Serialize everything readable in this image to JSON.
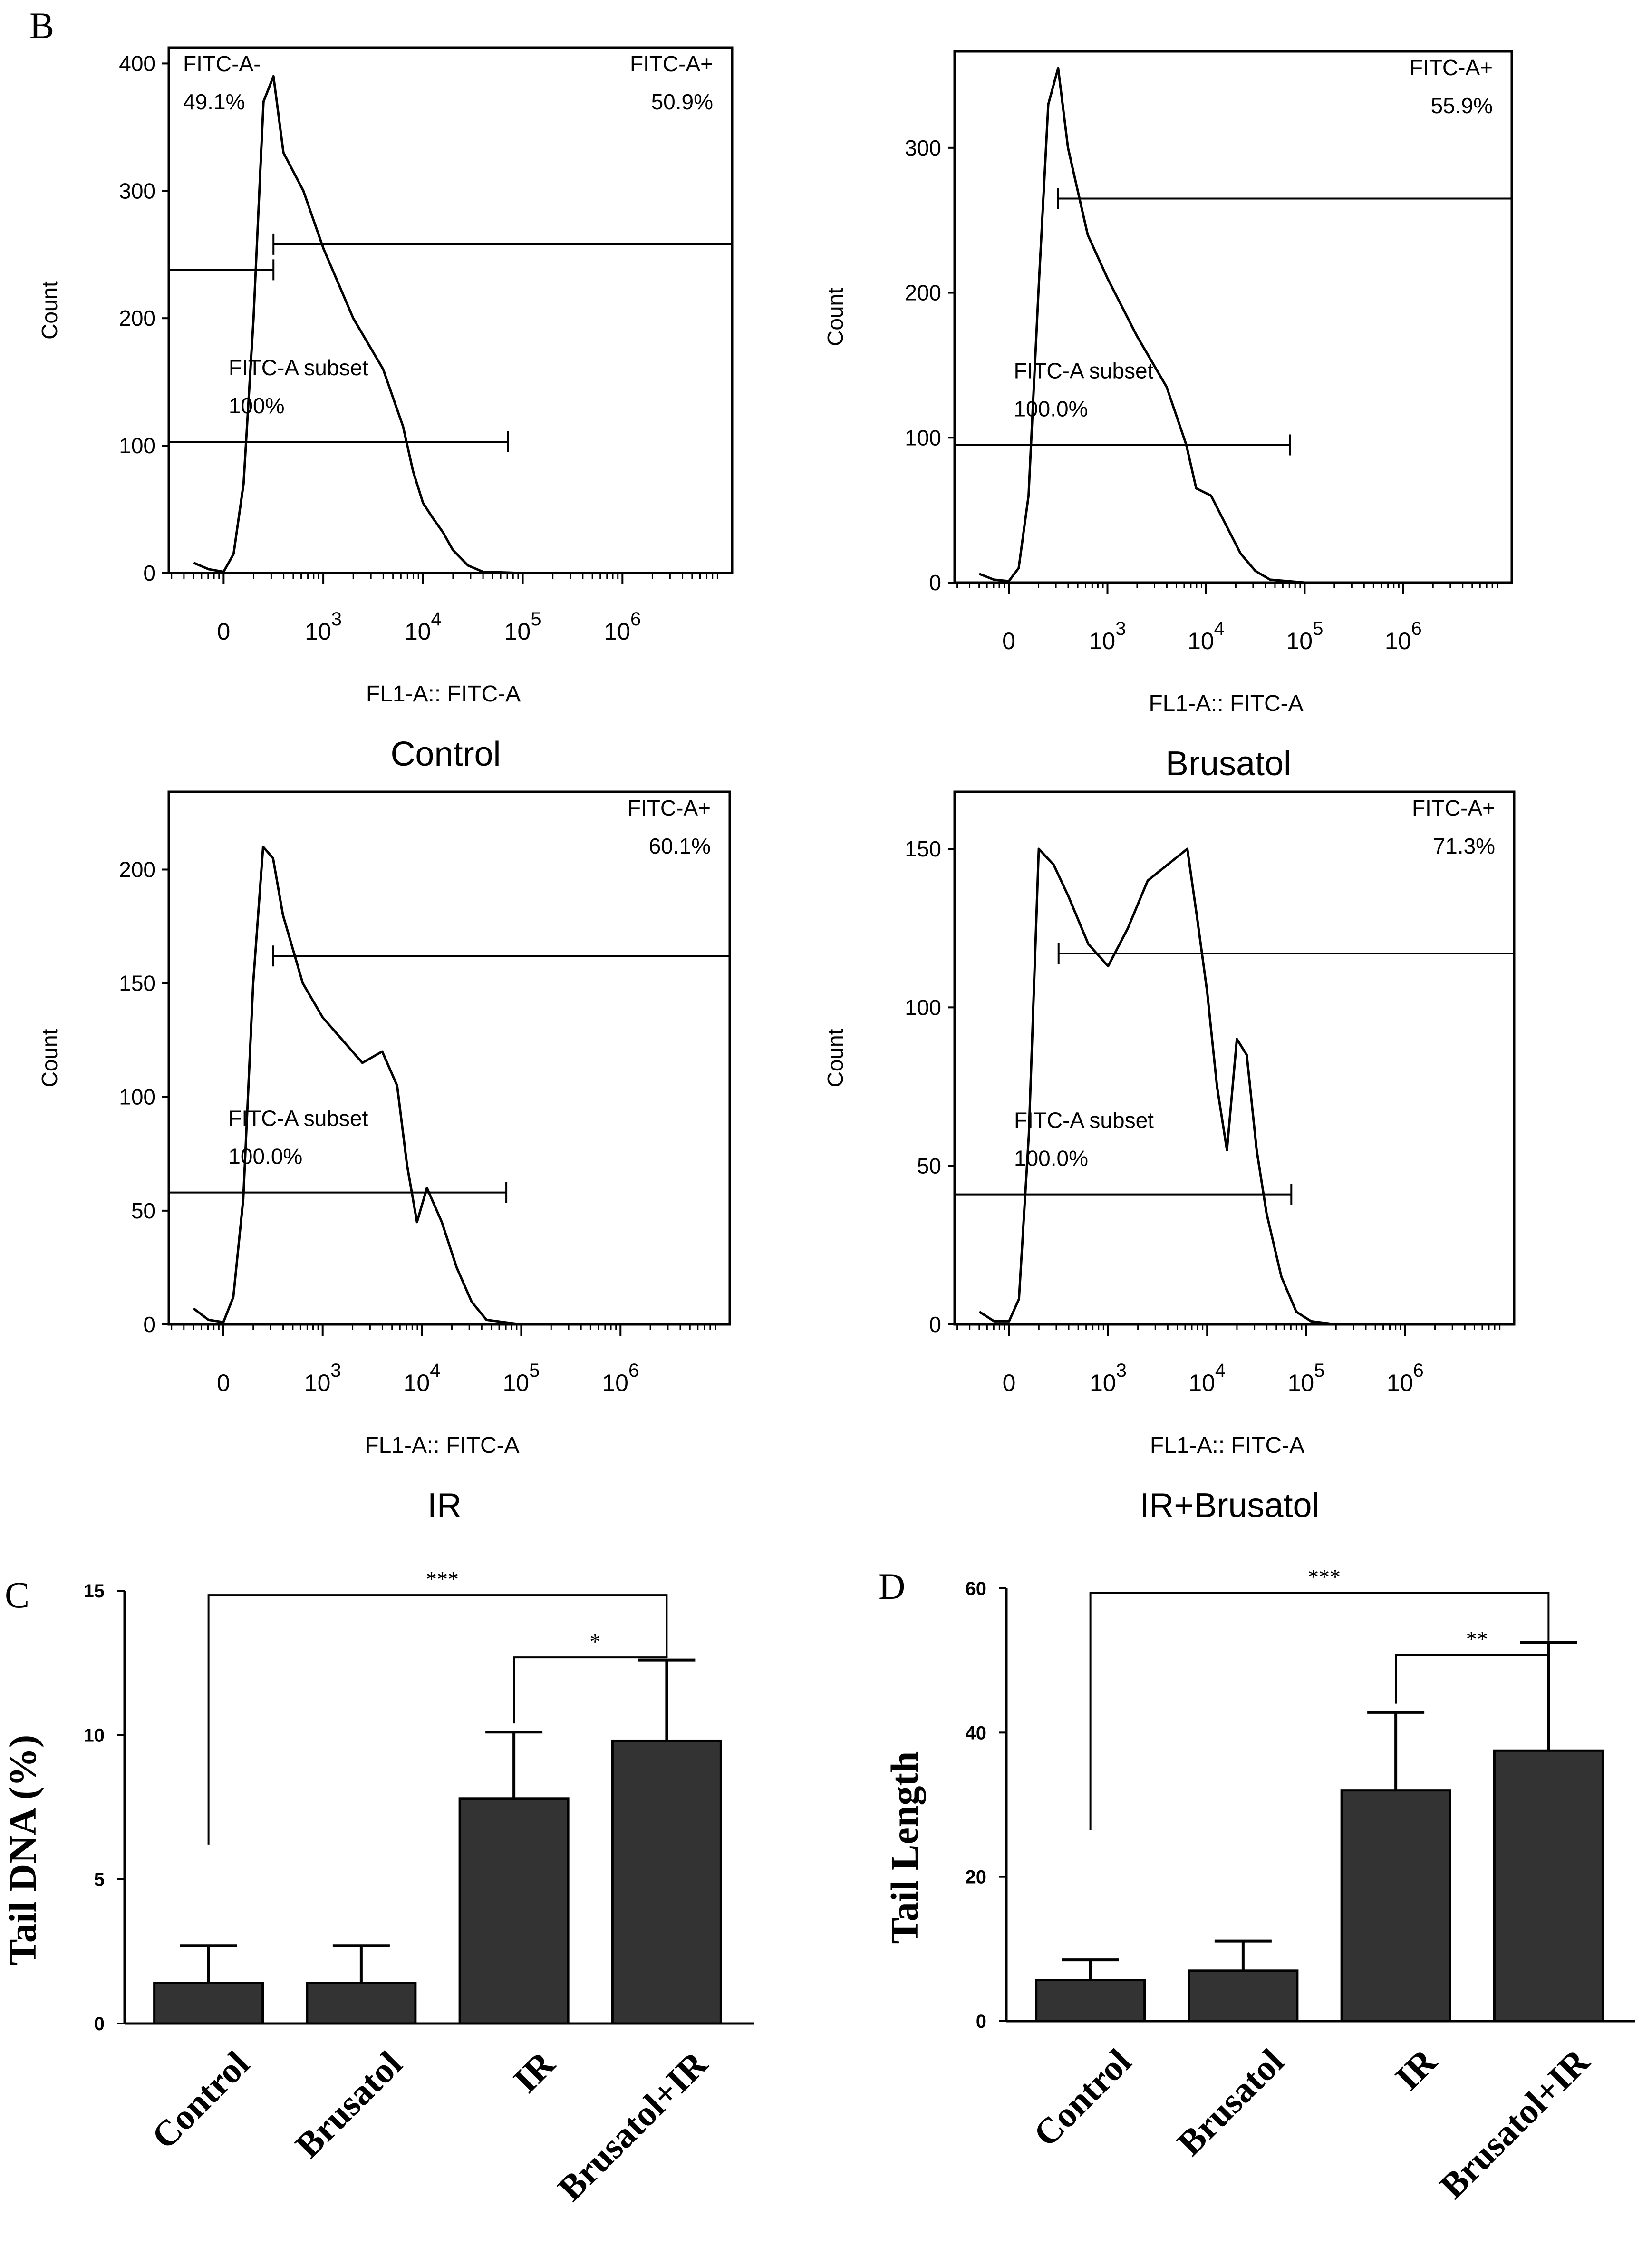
{
  "panel_labels": {
    "B": "B",
    "C": "C",
    "D": "D"
  },
  "chart_data": [
    {
      "type": "histogram",
      "title": "Control",
      "xlabel": "FL1-A:: FITC-A",
      "ylabel": "Count",
      "ylim": [
        0,
        405
      ],
      "yticks": [
        0,
        100,
        200,
        300,
        400
      ],
      "xticks": [
        {
          "base": "0",
          "exp": ""
        },
        {
          "base": "10",
          "exp": "3"
        },
        {
          "base": "10",
          "exp": "4"
        },
        {
          "base": "10",
          "exp": "5"
        },
        {
          "base": "10",
          "exp": "6"
        }
      ],
      "curve": [
        [
          -0.3,
          8
        ],
        [
          -0.15,
          3
        ],
        [
          0,
          1
        ],
        [
          0.1,
          15
        ],
        [
          0.2,
          70
        ],
        [
          0.3,
          200
        ],
        [
          0.4,
          370
        ],
        [
          0.5,
          390
        ],
        [
          0.6,
          330
        ],
        [
          0.8,
          300
        ],
        [
          1.0,
          255
        ],
        [
          1.3,
          200
        ],
        [
          1.6,
          160
        ],
        [
          1.8,
          115
        ],
        [
          1.9,
          80
        ],
        [
          2.0,
          55
        ],
        [
          2.1,
          43
        ],
        [
          2.2,
          32
        ],
        [
          2.3,
          18
        ],
        [
          2.45,
          6
        ],
        [
          2.6,
          1
        ],
        [
          3.0,
          0
        ],
        [
          5.0,
          0
        ]
      ],
      "gates": [
        {
          "name": "FITC-A-",
          "value": "49.1%",
          "label_at": "top-left"
        },
        {
          "name": "FITC-A+",
          "value": "50.9%",
          "label_at": "top-right"
        },
        {
          "name": "FITC-A subset",
          "value": "100%",
          "label_at": "middle"
        }
      ]
    },
    {
      "type": "histogram",
      "title": "Brusatol",
      "xlabel": "FL1-A:: FITC-A",
      "ylabel": "Count",
      "ylim": [
        0,
        360
      ],
      "yticks": [
        0,
        100,
        200,
        300
      ],
      "xticks": [
        {
          "base": "0",
          "exp": ""
        },
        {
          "base": "10",
          "exp": "3"
        },
        {
          "base": "10",
          "exp": "4"
        },
        {
          "base": "10",
          "exp": "5"
        },
        {
          "base": "10",
          "exp": "6"
        }
      ],
      "curve": [
        [
          -0.3,
          6
        ],
        [
          -0.15,
          2
        ],
        [
          0,
          1
        ],
        [
          0.1,
          10
        ],
        [
          0.2,
          60
        ],
        [
          0.3,
          200
        ],
        [
          0.4,
          330
        ],
        [
          0.5,
          355
        ],
        [
          0.6,
          300
        ],
        [
          0.8,
          240
        ],
        [
          1.0,
          210
        ],
        [
          1.3,
          170
        ],
        [
          1.6,
          135
        ],
        [
          1.8,
          95
        ],
        [
          1.9,
          65
        ],
        [
          2.05,
          60
        ],
        [
          2.2,
          40
        ],
        [
          2.35,
          20
        ],
        [
          2.5,
          8
        ],
        [
          2.65,
          2
        ],
        [
          3.0,
          0
        ],
        [
          5.0,
          0
        ]
      ],
      "gates": [
        {
          "name": "FITC-A+",
          "value": "55.9%",
          "label_at": "top-right"
        },
        {
          "name": "FITC-A subset",
          "value": "100.0%",
          "label_at": "middle"
        }
      ]
    },
    {
      "type": "histogram",
      "title": "IR",
      "xlabel": "FL1-A:: FITC-A",
      "ylabel": "Count",
      "ylim": [
        0,
        230
      ],
      "yticks": [
        0,
        50,
        100,
        150,
        200
      ],
      "xticks": [
        {
          "base": "0",
          "exp": ""
        },
        {
          "base": "10",
          "exp": "3"
        },
        {
          "base": "10",
          "exp": "4"
        },
        {
          "base": "10",
          "exp": "5"
        },
        {
          "base": "10",
          "exp": "6"
        }
      ],
      "curve": [
        [
          -0.3,
          7
        ],
        [
          -0.15,
          2
        ],
        [
          0,
          1
        ],
        [
          0.1,
          12
        ],
        [
          0.2,
          55
        ],
        [
          0.3,
          150
        ],
        [
          0.4,
          210
        ],
        [
          0.5,
          205
        ],
        [
          0.6,
          180
        ],
        [
          0.8,
          150
        ],
        [
          1.0,
          135
        ],
        [
          1.2,
          125
        ],
        [
          1.4,
          115
        ],
        [
          1.6,
          120
        ],
        [
          1.75,
          105
        ],
        [
          1.85,
          70
        ],
        [
          1.95,
          45
        ],
        [
          2.05,
          60
        ],
        [
          2.2,
          45
        ],
        [
          2.35,
          25
        ],
        [
          2.5,
          10
        ],
        [
          2.65,
          2
        ],
        [
          3.0,
          0
        ],
        [
          5.0,
          0
        ]
      ],
      "gates": [
        {
          "name": "FITC-A+",
          "value": "60.1%",
          "label_at": "top-right"
        },
        {
          "name": "FITC-A subset",
          "value": "100.0%",
          "label_at": "middle"
        }
      ]
    },
    {
      "type": "histogram",
      "title": "IR+Brusatol",
      "xlabel": "FL1-A:: FITC-A",
      "ylabel": "Count",
      "ylim": [
        0,
        165
      ],
      "yticks": [
        0,
        50,
        100,
        150
      ],
      "xticks": [
        {
          "base": "0",
          "exp": ""
        },
        {
          "base": "10",
          "exp": "3"
        },
        {
          "base": "10",
          "exp": "4"
        },
        {
          "base": "10",
          "exp": "5"
        },
        {
          "base": "10",
          "exp": "6"
        }
      ],
      "curve": [
        [
          -0.3,
          4
        ],
        [
          -0.15,
          1
        ],
        [
          0,
          1
        ],
        [
          0.1,
          8
        ],
        [
          0.2,
          60
        ],
        [
          0.3,
          150
        ],
        [
          0.45,
          145
        ],
        [
          0.6,
          135
        ],
        [
          0.8,
          120
        ],
        [
          1.0,
          113
        ],
        [
          1.2,
          125
        ],
        [
          1.4,
          140
        ],
        [
          1.6,
          145
        ],
        [
          1.8,
          150
        ],
        [
          1.9,
          128
        ],
        [
          2.0,
          105
        ],
        [
          2.1,
          75
        ],
        [
          2.2,
          55
        ],
        [
          2.3,
          90
        ],
        [
          2.4,
          85
        ],
        [
          2.5,
          55
        ],
        [
          2.6,
          35
        ],
        [
          2.75,
          15
        ],
        [
          2.9,
          4
        ],
        [
          3.05,
          1
        ],
        [
          3.3,
          0
        ],
        [
          5.0,
          0
        ]
      ],
      "gates": [
        {
          "name": "FITC-A+",
          "value": "71.3%",
          "label_at": "top-right"
        },
        {
          "name": "FITC-A subset",
          "value": "100.0%",
          "label_at": "middle"
        }
      ]
    },
    {
      "type": "bar",
      "panel": "C",
      "categories": [
        "Control",
        "Brusatol",
        "IR",
        "Brusatol+IR"
      ],
      "values": [
        1.4,
        1.4,
        7.8,
        9.8
      ],
      "errors": [
        1.3,
        1.3,
        2.3,
        2.8
      ],
      "ylabel": "Tail DNA (%)",
      "ylim": [
        0,
        15
      ],
      "yticks": [
        0,
        5,
        10,
        15
      ],
      "significance": [
        {
          "from": "Control",
          "to": "Brusatol+IR",
          "label": "***"
        },
        {
          "from": "IR",
          "to": "Brusatol+IR",
          "label": "*"
        }
      ]
    },
    {
      "type": "bar",
      "panel": "D",
      "categories": [
        "Control",
        "Brusatol",
        "IR",
        "Brusatol+IR"
      ],
      "values": [
        5.7,
        7.0,
        32.0,
        37.5
      ],
      "errors": [
        2.8,
        4.1,
        10.8,
        15.0
      ],
      "ylabel": "Tail Length",
      "ylim": [
        0,
        60
      ],
      "yticks": [
        0,
        20,
        40,
        60
      ],
      "significance": [
        {
          "from": "Control",
          "to": "Brusatol+IR",
          "label": "***"
        },
        {
          "from": "IR",
          "to": "Brusatol+IR",
          "label": "**"
        }
      ]
    }
  ]
}
